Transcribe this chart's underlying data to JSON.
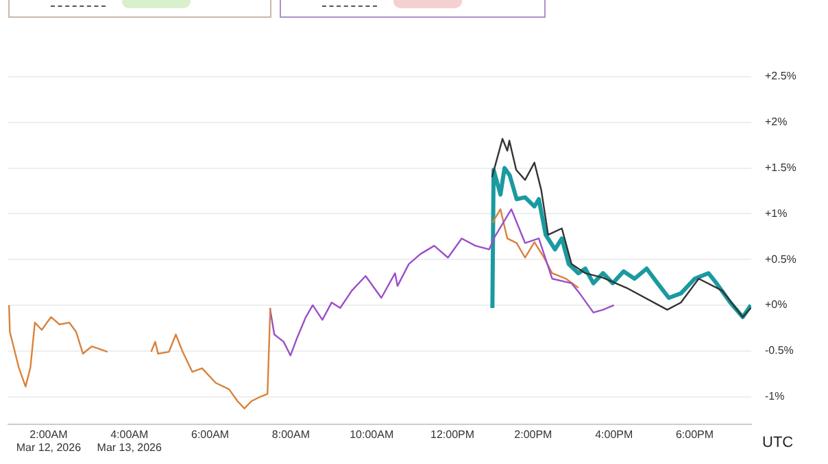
{
  "chart_data": {
    "type": "line",
    "xlabel": "UTC",
    "xlim": [
      1,
      19.4
    ],
    "xticks": [
      {
        "value": 2,
        "label": "2:00AM\nMar 12, 2026"
      },
      {
        "value": 4,
        "label": "4:00AM\nMar 13, 2026"
      },
      {
        "value": 6,
        "label": "6:00AM"
      },
      {
        "value": 8,
        "label": "8:00AM"
      },
      {
        "value": 10,
        "label": "10:00AM"
      },
      {
        "value": 12,
        "label": "12:00PM"
      },
      {
        "value": 14,
        "label": "2:00PM"
      },
      {
        "value": 16,
        "label": "4:00PM"
      },
      {
        "value": 18,
        "label": "6:00PM"
      }
    ],
    "ylim": [
      -1.3,
      2.5
    ],
    "yticks": [
      {
        "value": -1,
        "label": "-1%"
      },
      {
        "value": -0.5,
        "label": "-0.5%"
      },
      {
        "value": 0,
        "label": "+0%"
      },
      {
        "value": 0.5,
        "label": "+0.5%"
      },
      {
        "value": 1,
        "label": "+1%"
      },
      {
        "value": 1.5,
        "label": "+1.5%"
      },
      {
        "value": 2,
        "label": "+2%"
      },
      {
        "value": 2.5,
        "label": "+2.5%"
      }
    ],
    "grid": "y",
    "marker": "none",
    "line_style": "solid",
    "series": [
      {
        "color": "#d9823b",
        "x": [
          1.02,
          1.04,
          1.26,
          1.43,
          1.55,
          1.66,
          1.83,
          2.06,
          2.27,
          2.51,
          2.68,
          2.85,
          3.07,
          3.46,
          4.0,
          4.54,
          4.64,
          4.71,
          4.98,
          5.15,
          5.32,
          5.56,
          5.8,
          6.14,
          6.47,
          6.68,
          6.85,
          7.02,
          7.25,
          7.42,
          7.49
        ],
        "values": [
          0,
          -0.29,
          -0.68,
          -0.89,
          -0.68,
          -0.19,
          -0.27,
          -0.13,
          -0.21,
          -0.19,
          -0.29,
          -0.53,
          -0.45,
          -0.51,
          null,
          -0.51,
          -0.4,
          -0.53,
          -0.51,
          -0.32,
          -0.51,
          -0.73,
          -0.69,
          -0.85,
          -0.92,
          -1.05,
          -1.13,
          -1.05,
          -1.0,
          -0.97,
          -0.03
        ]
      },
      {
        "color": "#9b4fc9",
        "x": [
          7.48,
          7.59,
          7.82,
          7.99,
          8.16,
          8.37,
          8.54,
          8.78,
          9.01,
          9.22,
          9.51,
          9.85,
          10.24,
          10.58,
          10.64,
          10.92,
          11.21,
          11.55,
          11.89,
          12.23,
          12.57,
          12.91,
          13.05,
          13.46,
          13.8,
          14.14,
          14.47,
          14.95,
          15.15,
          15.49,
          15.73,
          16.0
        ],
        "values": [
          -0.03,
          -0.32,
          -0.4,
          -0.55,
          -0.35,
          -0.13,
          0,
          -0.16,
          0.03,
          -0.03,
          0.16,
          0.32,
          0.08,
          0.35,
          0.21,
          0.45,
          0.56,
          0.65,
          0.52,
          0.73,
          0.65,
          0.61,
          0.75,
          1.05,
          0.68,
          0.73,
          0.29,
          0.24,
          0.13,
          -0.08,
          -0.05,
          0
        ]
      },
      {
        "color": "#d9823b",
        "x": [
          12.99,
          13.19,
          13.36,
          13.59,
          13.8,
          14.03,
          14.27,
          14.47,
          14.81,
          15.12
        ],
        "values": [
          0.9,
          1.05,
          0.73,
          0.68,
          0.52,
          0.69,
          0.52,
          0.35,
          0.29,
          0.19
        ]
      },
      {
        "color": "#333333",
        "x": [
          12.98,
          13.24,
          13.36,
          13.41,
          13.58,
          13.8,
          14.03,
          14.2,
          14.37,
          14.71,
          14.95,
          15.29,
          15.73,
          16.31,
          17.32,
          17.66,
          18.1,
          18.68,
          19.19,
          19.39
        ],
        "values": [
          1.4,
          1.82,
          1.69,
          1.8,
          1.48,
          1.37,
          1.56,
          1.26,
          0.77,
          0.84,
          0.45,
          0.35,
          0.3,
          0.19,
          -0.05,
          0.03,
          0.29,
          0.16,
          -0.13,
          -0.03
        ]
      },
      {
        "color": "#1a9aa0",
        "x": [
          12.99,
          13.02,
          13.19,
          13.29,
          13.42,
          13.59,
          13.8,
          14.03,
          14.14,
          14.31,
          14.54,
          14.71,
          14.88,
          15.12,
          15.29,
          15.49,
          15.73,
          15.97,
          16.24,
          16.51,
          16.81,
          17.08,
          17.36,
          17.66,
          18.0,
          18.34,
          18.54,
          18.88,
          19.19,
          19.39
        ],
        "values": [
          -0.03,
          1.48,
          1.21,
          1.5,
          1.42,
          1.16,
          1.18,
          1.08,
          1.16,
          0.77,
          0.61,
          0.73,
          0.45,
          0.35,
          0.4,
          0.24,
          0.35,
          0.24,
          0.37,
          0.29,
          0.4,
          0.24,
          0.08,
          0.13,
          0.29,
          0.35,
          0.24,
          0.03,
          -0.13,
          0
        ]
      }
    ]
  }
}
